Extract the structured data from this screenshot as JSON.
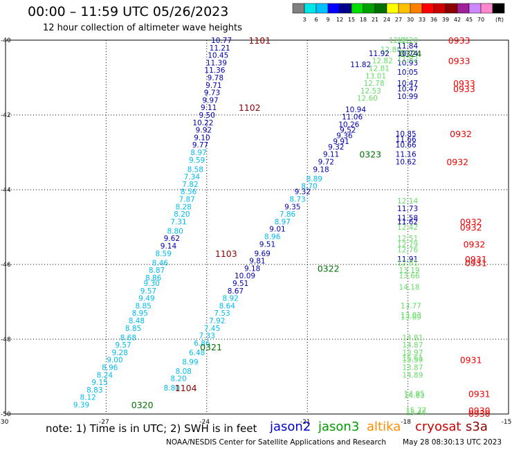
{
  "header": {
    "title": "00:00 – 11:59 UTC 05/26/2023",
    "subtitle": "12 hour collection of altimeter wave heights"
  },
  "legend": {
    "unit": "(ft)",
    "bins": [
      {
        "label": "",
        "color": "#808080"
      },
      {
        "label": "3",
        "color": "#00e6e6"
      },
      {
        "label": "6",
        "color": "#00bfff"
      },
      {
        "label": "9",
        "color": "#0000ff"
      },
      {
        "label": "12",
        "color": "#00008b"
      },
      {
        "label": "15",
        "color": "#00dd00"
      },
      {
        "label": "18",
        "color": "#00a000"
      },
      {
        "label": "21",
        "color": "#007000"
      },
      {
        "label": "24",
        "color": "#ffff00"
      },
      {
        "label": "27",
        "color": "#ffc000"
      },
      {
        "label": "30",
        "color": "#ff8000"
      },
      {
        "label": "33",
        "color": "#ff0000"
      },
      {
        "label": "36",
        "color": "#cc0000"
      },
      {
        "label": "39",
        "color": "#8b0000"
      },
      {
        "label": "42",
        "color": "#a0209a"
      },
      {
        "label": "45",
        "color": "#cc88ff"
      },
      {
        "label": "70",
        "color": "#ff88cc"
      },
      {
        "label": "",
        "color": "#000000"
      }
    ]
  },
  "axes": {
    "lon_ticks": [
      "-30",
      "-27",
      "-24",
      "-21",
      "-18",
      "-15"
    ],
    "lat_ticks": [
      "-40",
      "-42",
      "-44",
      "-46",
      "-48",
      "-50"
    ]
  },
  "tracks": [
    {
      "color": "#0000b0",
      "points": [
        {
          "lon": -23.25,
          "lat": -40.0,
          "v": "10.77"
        },
        {
          "lon": -23.3,
          "lat": -40.2,
          "v": "11.21"
        },
        {
          "lon": -23.35,
          "lat": -40.4,
          "v": "10.45"
        },
        {
          "lon": -23.4,
          "lat": -40.6,
          "v": "11.39"
        },
        {
          "lon": -23.45,
          "lat": -40.8,
          "v": "11.36"
        },
        {
          "lon": -23.5,
          "lat": -41.0,
          "v": "9.78"
        },
        {
          "lon": -23.55,
          "lat": -41.2,
          "v": "9.71"
        },
        {
          "lon": -23.6,
          "lat": -41.4,
          "v": "9.73"
        },
        {
          "lon": -23.65,
          "lat": -41.6,
          "v": "9.97"
        },
        {
          "lon": -23.7,
          "lat": -41.8,
          "v": "9.11"
        },
        {
          "lon": -23.75,
          "lat": -42.0,
          "v": "9.50"
        },
        {
          "lon": -23.8,
          "lat": -42.2,
          "v": "10.22"
        },
        {
          "lon": -23.85,
          "lat": -42.4,
          "v": "9.92"
        },
        {
          "lon": -23.9,
          "lat": -42.6,
          "v": "9.10"
        },
        {
          "lon": -23.95,
          "lat": -42.8,
          "v": "9.77"
        }
      ]
    },
    {
      "color": "#00bbee",
      "points": [
        {
          "lon": -24.0,
          "lat": -43.0,
          "v": "8.97"
        },
        {
          "lon": -24.05,
          "lat": -43.2,
          "v": "9.59"
        },
        {
          "lon": -24.1,
          "lat": -43.45,
          "v": "8.58"
        },
        {
          "lon": -24.2,
          "lat": -43.65,
          "v": "7.34"
        },
        {
          "lon": -24.25,
          "lat": -43.85,
          "v": "7.82"
        },
        {
          "lon": -24.3,
          "lat": -44.05,
          "v": "8.56"
        },
        {
          "lon": -24.35,
          "lat": -44.25,
          "v": "7.87"
        },
        {
          "lon": -24.45,
          "lat": -44.45,
          "v": "8.28"
        },
        {
          "lon": -24.5,
          "lat": -44.65,
          "v": "8.20"
        },
        {
          "lon": -24.6,
          "lat": -44.85,
          "v": "7.31"
        },
        {
          "lon": -24.7,
          "lat": -45.1,
          "v": "8.80"
        }
      ]
    },
    {
      "color": "#0000b0",
      "points": [
        {
          "lon": -24.8,
          "lat": -45.3,
          "v": "9.62"
        },
        {
          "lon": -24.9,
          "lat": -45.5,
          "v": "9.14"
        }
      ]
    },
    {
      "color": "#00bbee",
      "points": [
        {
          "lon": -25.05,
          "lat": -45.7,
          "v": "8.59"
        },
        {
          "lon": -25.15,
          "lat": -45.95,
          "v": "8.46"
        },
        {
          "lon": -25.25,
          "lat": -46.15,
          "v": "8.87"
        },
        {
          "lon": -25.35,
          "lat": -46.35,
          "v": "8.86"
        },
        {
          "lon": -25.4,
          "lat": -46.5,
          "v": "9.30"
        },
        {
          "lon": -25.5,
          "lat": -46.7,
          "v": "9.57"
        },
        {
          "lon": -25.55,
          "lat": -46.9,
          "v": "9.49"
        },
        {
          "lon": -25.65,
          "lat": -47.1,
          "v": "8.85"
        },
        {
          "lon": -25.75,
          "lat": -47.3,
          "v": "8.95"
        },
        {
          "lon": -25.85,
          "lat": -47.5,
          "v": "8.48"
        },
        {
          "lon": -25.95,
          "lat": -47.7,
          "v": "8.85"
        },
        {
          "lon": -26.1,
          "lat": -47.95,
          "v": "8.68"
        },
        {
          "lon": -26.25,
          "lat": -48.15,
          "v": "9.57"
        },
        {
          "lon": -26.35,
          "lat": -48.35,
          "v": "9.28"
        },
        {
          "lon": -26.5,
          "lat": -48.55,
          "v": "9.00"
        },
        {
          "lon": -26.65,
          "lat": -48.75,
          "v": "8.96"
        },
        {
          "lon": -26.8,
          "lat": -48.95,
          "v": "8.24"
        },
        {
          "lon": -26.95,
          "lat": -49.15,
          "v": "9.15"
        },
        {
          "lon": -27.1,
          "lat": -49.35,
          "v": "8.83"
        },
        {
          "lon": -27.3,
          "lat": -49.55,
          "v": "8.12"
        },
        {
          "lon": -27.5,
          "lat": -49.75,
          "v": "9.39"
        }
      ]
    },
    {
      "color": "#0000b0",
      "points": [
        {
          "lon": -19.1,
          "lat": -40.65,
          "v": "11.82"
        },
        {
          "lon": -19.25,
          "lat": -41.85,
          "v": "10.94"
        },
        {
          "lon": -19.35,
          "lat": -42.05,
          "v": "11.06"
        },
        {
          "lon": -19.45,
          "lat": -42.25,
          "v": "10.26"
        },
        {
          "lon": -19.55,
          "lat": -42.4,
          "v": "9.52"
        },
        {
          "lon": -19.65,
          "lat": -42.55,
          "v": "9.36"
        },
        {
          "lon": -19.75,
          "lat": -42.7,
          "v": "9.91"
        },
        {
          "lon": -19.9,
          "lat": -42.85,
          "v": "9.32"
        },
        {
          "lon": -20.05,
          "lat": -43.05,
          "v": "9.11"
        },
        {
          "lon": -20.2,
          "lat": -43.25,
          "v": "9.72"
        },
        {
          "lon": -20.35,
          "lat": -43.45,
          "v": "9.18"
        }
      ]
    },
    {
      "color": "#00bbee",
      "points": [
        {
          "lon": -20.55,
          "lat": -43.7,
          "v": "8.89"
        },
        {
          "lon": -20.7,
          "lat": -43.9,
          "v": "8.70"
        }
      ]
    },
    {
      "color": "#0000b0",
      "points": [
        {
          "lon": -20.9,
          "lat": -44.05,
          "v": "9.32"
        }
      ]
    },
    {
      "color": "#00bbee",
      "points": [
        {
          "lon": -21.05,
          "lat": -44.25,
          "v": "8.73"
        }
      ]
    },
    {
      "color": "#0000b0",
      "points": [
        {
          "lon": -21.2,
          "lat": -44.45,
          "v": "9.35"
        }
      ]
    },
    {
      "color": "#00bbee",
      "points": [
        {
          "lon": -21.35,
          "lat": -44.65,
          "v": "7.86"
        },
        {
          "lon": -21.5,
          "lat": -44.85,
          "v": "8.97"
        }
      ]
    },
    {
      "color": "#0000b0",
      "points": [
        {
          "lon": -21.65,
          "lat": -45.05,
          "v": "9.01"
        }
      ]
    },
    {
      "color": "#00bbee",
      "points": [
        {
          "lon": -21.8,
          "lat": -45.25,
          "v": "8.96"
        }
      ]
    },
    {
      "color": "#0000b0",
      "points": [
        {
          "lon": -21.95,
          "lat": -45.45,
          "v": "9.51"
        },
        {
          "lon": -22.1,
          "lat": -45.7,
          "v": "9.69"
        },
        {
          "lon": -22.25,
          "lat": -45.9,
          "v": "9.81"
        },
        {
          "lon": -22.4,
          "lat": -46.1,
          "v": "9.18"
        },
        {
          "lon": -22.55,
          "lat": -46.3,
          "v": "10.09"
        },
        {
          "lon": -22.75,
          "lat": -46.5,
          "v": "9.51"
        },
        {
          "lon": -22.9,
          "lat": -46.7,
          "v": "8.67"
        }
      ]
    },
    {
      "color": "#00bbee",
      "points": [
        {
          "lon": -23.05,
          "lat": -46.9,
          "v": "8.92"
        },
        {
          "lon": -23.15,
          "lat": -47.1,
          "v": "8.64"
        },
        {
          "lon": -23.3,
          "lat": -47.3,
          "v": "7.53"
        },
        {
          "lon": -23.45,
          "lat": -47.5,
          "v": "7.92"
        },
        {
          "lon": -23.6,
          "lat": -47.7,
          "v": "7.45"
        },
        {
          "lon": -23.75,
          "lat": -47.9,
          "v": "7.33"
        },
        {
          "lon": -23.9,
          "lat": -48.1,
          "v": "6.86"
        },
        {
          "lon": -24.05,
          "lat": -48.35,
          "v": "6.48"
        },
        {
          "lon": -24.25,
          "lat": -48.6,
          "v": "8.99"
        },
        {
          "lon": -24.45,
          "lat": -48.85,
          "v": "8.08"
        },
        {
          "lon": -24.6,
          "lat": -49.05,
          "v": "8.20"
        },
        {
          "lon": -24.8,
          "lat": -49.3,
          "v": "8.80"
        }
      ]
    },
    {
      "color": "#66dd66",
      "points": [
        {
          "lon": -17.95,
          "lat": -40.0,
          "v": "12.81"
        },
        {
          "lon": -18.2,
          "lat": -40.25,
          "v": "12.80"
        },
        {
          "lon": -18.45,
          "lat": -40.55,
          "v": "12.82"
        },
        {
          "lon": -18.55,
          "lat": -40.75,
          "v": "12.81"
        },
        {
          "lon": -18.65,
          "lat": -40.95,
          "v": "13.01"
        },
        {
          "lon": -18.7,
          "lat": -41.15,
          "v": "12.78"
        },
        {
          "lon": -18.8,
          "lat": -41.35,
          "v": "12.53"
        },
        {
          "lon": -18.9,
          "lat": -41.55,
          "v": "12.60"
        }
      ]
    },
    {
      "color": "#0000b0",
      "points": [
        {
          "lon": -18.55,
          "lat": -40.35,
          "v": "11.92"
        }
      ]
    },
    {
      "color": "#66dd66",
      "points": [
        {
          "lon": -17.7,
          "lat": -40.0,
          "v": "12.20"
        }
      ]
    },
    {
      "color": "#0000b0",
      "points": [
        {
          "lon": -17.7,
          "lat": -40.15,
          "v": "11.84"
        },
        {
          "lon": -17.7,
          "lat": -40.35,
          "v": "10.74"
        },
        {
          "lon": -17.7,
          "lat": -40.6,
          "v": "10.93"
        },
        {
          "lon": -17.7,
          "lat": -40.85,
          "v": "10.05"
        },
        {
          "lon": -17.7,
          "lat": -41.15,
          "v": "10.47"
        },
        {
          "lon": -17.7,
          "lat": -41.3,
          "v": "10.47"
        },
        {
          "lon": -17.7,
          "lat": -41.5,
          "v": "10.99"
        }
      ]
    },
    {
      "color": "#66dd66",
      "points": [
        {
          "lon": -17.7,
          "lat": -40.5,
          "v": "11.82"
        }
      ]
    },
    {
      "color": "#0000b0",
      "points": [
        {
          "lon": -17.75,
          "lat": -42.5,
          "v": "10.85"
        },
        {
          "lon": -17.75,
          "lat": -42.65,
          "v": "11.66"
        },
        {
          "lon": -17.75,
          "lat": -42.8,
          "v": "10.66"
        },
        {
          "lon": -17.75,
          "lat": -43.05,
          "v": "11.16"
        },
        {
          "lon": -17.75,
          "lat": -43.25,
          "v": "10.62"
        }
      ]
    },
    {
      "color": "#66dd66",
      "points": [
        {
          "lon": -17.7,
          "lat": -44.3,
          "v": "12.14"
        }
      ]
    },
    {
      "color": "#0000b0",
      "points": [
        {
          "lon": -17.7,
          "lat": -44.5,
          "v": "11.73"
        },
        {
          "lon": -17.7,
          "lat": -44.75,
          "v": "11.58"
        },
        {
          "lon": -17.7,
          "lat": -44.85,
          "v": "11.62"
        }
      ]
    },
    {
      "color": "#66dd66",
      "points": [
        {
          "lon": -17.7,
          "lat": -45.0,
          "v": "12.42"
        },
        {
          "lon": -17.7,
          "lat": -45.3,
          "v": "12.51"
        },
        {
          "lon": -17.7,
          "lat": -45.45,
          "v": "12.79"
        },
        {
          "lon": -17.7,
          "lat": -45.6,
          "v": "12.76"
        }
      ]
    },
    {
      "color": "#0000b0",
      "points": [
        {
          "lon": -17.7,
          "lat": -45.85,
          "v": "11.91"
        }
      ]
    },
    {
      "color": "#66dd66",
      "points": [
        {
          "lon": -17.7,
          "lat": -45.95,
          "v": "12.81"
        },
        {
          "lon": -17.65,
          "lat": -46.15,
          "v": "13.19"
        },
        {
          "lon": -17.65,
          "lat": -46.3,
          "v": "13.66"
        },
        {
          "lon": -17.65,
          "lat": -46.6,
          "v": "14.18"
        },
        {
          "lon": -17.6,
          "lat": -47.1,
          "v": "13.77"
        },
        {
          "lon": -17.6,
          "lat": -47.35,
          "v": "13.03"
        },
        {
          "lon": -17.6,
          "lat": -47.4,
          "v": "13.89"
        },
        {
          "lon": -17.55,
          "lat": -47.95,
          "v": "14.81"
        },
        {
          "lon": -17.55,
          "lat": -48.15,
          "v": "14.87"
        },
        {
          "lon": -17.55,
          "lat": -48.35,
          "v": "13.97"
        },
        {
          "lon": -17.55,
          "lat": -48.5,
          "v": "15.61"
        },
        {
          "lon": -17.55,
          "lat": -48.55,
          "v": "15.59"
        },
        {
          "lon": -17.55,
          "lat": -48.75,
          "v": "13.87"
        },
        {
          "lon": -17.55,
          "lat": -48.95,
          "v": "14.89"
        },
        {
          "lon": -17.5,
          "lat": -49.45,
          "v": "14.95"
        },
        {
          "lon": -17.5,
          "lat": -49.5,
          "v": "14.63"
        },
        {
          "lon": -17.45,
          "lat": -49.9,
          "v": "15.77"
        },
        {
          "lon": -17.45,
          "lat": -49.95,
          "v": "15.46"
        }
      ]
    }
  ],
  "time_labels": [
    {
      "text": "1101",
      "color": "#8b0000",
      "lon": -22.75,
      "lat": -40.0
    },
    {
      "text": "1102",
      "color": "#8b0000",
      "lon": -23.05,
      "lat": -41.8
    },
    {
      "text": "1103",
      "color": "#8b0000",
      "lon": -23.75,
      "lat": -45.7
    },
    {
      "text": "1104",
      "color": "#8b0000",
      "lon": -24.95,
      "lat": -49.3
    },
    {
      "text": "0324",
      "color": "#007000",
      "lon": -18.25,
      "lat": -40.35
    },
    {
      "text": "0323",
      "color": "#007000",
      "lon": -19.45,
      "lat": -43.05
    },
    {
      "text": "0322",
      "color": "#007000",
      "lon": -20.7,
      "lat": -46.1
    },
    {
      "text": "0321",
      "color": "#007000",
      "lon": -24.2,
      "lat": -48.2
    },
    {
      "text": "0320",
      "color": "#007000",
      "lon": -26.25,
      "lat": -49.75
    },
    {
      "text": "0933",
      "color": "#ee0000",
      "lon": -16.8,
      "lat": -40.0
    },
    {
      "text": "0933",
      "color": "#ee0000",
      "lon": -16.8,
      "lat": -40.55
    },
    {
      "text": "0933",
      "color": "#ee0000",
      "lon": -16.65,
      "lat": -41.15
    },
    {
      "text": "0933",
      "color": "#ee0000",
      "lon": -16.65,
      "lat": -41.3
    },
    {
      "text": "0932",
      "color": "#ee0000",
      "lon": -16.75,
      "lat": -42.5
    },
    {
      "text": "0932",
      "color": "#ee0000",
      "lon": -16.85,
      "lat": -43.25
    },
    {
      "text": "0932",
      "color": "#ee0000",
      "lon": -16.45,
      "lat": -44.85
    },
    {
      "text": "0932",
      "color": "#ee0000",
      "lon": -16.45,
      "lat": -45.0
    },
    {
      "text": "0932",
      "color": "#ee0000",
      "lon": -16.35,
      "lat": -45.45
    },
    {
      "text": "0931",
      "color": "#ee0000",
      "lon": -16.3,
      "lat": -45.85
    },
    {
      "text": "0931",
      "color": "#ee0000",
      "lon": -16.3,
      "lat": -45.95
    },
    {
      "text": "0931",
      "color": "#ee0000",
      "lon": -16.45,
      "lat": -48.55
    },
    {
      "text": "0931",
      "color": "#ee0000",
      "lon": -16.2,
      "lat": -49.45
    },
    {
      "text": "0930",
      "color": "#ee0000",
      "lon": -16.2,
      "lat": -49.9
    },
    {
      "text": "0930",
      "color": "#ee0000",
      "lon": -16.2,
      "lat": -49.98
    }
  ],
  "footer": {
    "note": "note: 1) Time is in UTC; 2) SWH is in feet",
    "satellites": [
      {
        "name": "jason2",
        "color": "#0000cc"
      },
      {
        "name": "jason3",
        "color": "#009900"
      },
      {
        "name": "altika",
        "color": "#ff8c00"
      },
      {
        "name": "cryosat",
        "color": "#cc0000"
      },
      {
        "name": "s3a",
        "color": "#8b0000"
      }
    ],
    "credit": "NOAA/NESDIS Center for Satellite Applications and Research",
    "generated": "May 28 08:30:13 UTC 2023"
  }
}
